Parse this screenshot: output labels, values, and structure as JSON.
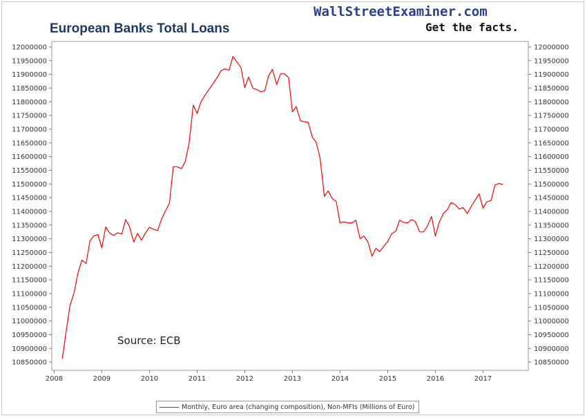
{
  "header": {
    "title": "European Banks Total Loans",
    "brand": "WallStreetExaminer.com",
    "tagline": "Get the facts."
  },
  "annotation": "Source: ECB",
  "legend": {
    "label": "Monthly, Euro area (changing composition), Non-MFIs (Millions of Euro)",
    "color": "#ff0000"
  },
  "chart_data": {
    "type": "line",
    "title": "European Banks Total Loans",
    "xlabel": "",
    "ylabel": "",
    "xlim": [
      2007.95,
      2017.95
    ],
    "ylim": [
      10820000,
      12020000
    ],
    "x_ticks": [
      2008,
      2009,
      2010,
      2011,
      2012,
      2013,
      2014,
      2015,
      2016,
      2017
    ],
    "y_ticks": [
      10850000,
      10900000,
      10950000,
      11000000,
      11050000,
      11100000,
      11150000,
      11200000,
      11250000,
      11300000,
      11350000,
      11400000,
      11450000,
      11500000,
      11550000,
      11600000,
      11650000,
      11700000,
      11750000,
      11800000,
      11850000,
      11900000,
      11950000,
      12000000
    ],
    "y_axis_both_sides": true,
    "grid": false,
    "legend_position": "bottom-center",
    "series": [
      {
        "name": "Monthly, Euro area (changing composition), Non-MFIs (Millions of Euro)",
        "color": "#ff0000",
        "x": [
          2008.17,
          2008.25,
          2008.33,
          2008.42,
          2008.5,
          2008.58,
          2008.67,
          2008.75,
          2008.83,
          2008.92,
          2009.0,
          2009.08,
          2009.17,
          2009.25,
          2009.33,
          2009.42,
          2009.5,
          2009.58,
          2009.67,
          2009.75,
          2009.83,
          2009.92,
          2010.0,
          2010.08,
          2010.17,
          2010.25,
          2010.33,
          2010.42,
          2010.5,
          2010.58,
          2010.67,
          2010.75,
          2010.83,
          2010.92,
          2011.0,
          2011.08,
          2011.17,
          2011.25,
          2011.33,
          2011.42,
          2011.5,
          2011.58,
          2011.67,
          2011.75,
          2011.83,
          2011.92,
          2012.0,
          2012.08,
          2012.17,
          2012.25,
          2012.33,
          2012.42,
          2012.5,
          2012.58,
          2012.67,
          2012.75,
          2012.83,
          2012.92,
          2013.0,
          2013.08,
          2013.17,
          2013.25,
          2013.33,
          2013.42,
          2013.5,
          2013.58,
          2013.67,
          2013.75,
          2013.83,
          2013.92,
          2014.0,
          2014.08,
          2014.17,
          2014.25,
          2014.33,
          2014.42,
          2014.5,
          2014.58,
          2014.67,
          2014.75,
          2014.83,
          2014.92,
          2015.0,
          2015.08,
          2015.17,
          2015.25,
          2015.33,
          2015.42,
          2015.5,
          2015.58,
          2015.67,
          2015.75,
          2015.83,
          2015.92,
          2016.0,
          2016.08,
          2016.17,
          2016.25,
          2016.33,
          2016.42,
          2016.5,
          2016.58,
          2016.67,
          2016.75,
          2016.83,
          2016.92,
          2017.0,
          2017.08,
          2017.17,
          2017.25,
          2017.33,
          2017.42
        ],
        "y": [
          10862000,
          10960000,
          11055000,
          11105000,
          11175000,
          11222000,
          11210000,
          11292000,
          11310000,
          11315000,
          11267000,
          11343000,
          11320000,
          11312000,
          11322000,
          11318000,
          11370000,
          11345000,
          11288000,
          11320000,
          11295000,
          11322000,
          11342000,
          11335000,
          11330000,
          11370000,
          11400000,
          11430000,
          11563000,
          11563000,
          11556000,
          11582000,
          11648000,
          11788000,
          11757000,
          11800000,
          11825000,
          11845000,
          11865000,
          11888000,
          11913000,
          11920000,
          11915000,
          11965000,
          11947000,
          11925000,
          11852000,
          11890000,
          11849000,
          11845000,
          11837000,
          11840000,
          11895000,
          11918000,
          11863000,
          11902000,
          11902000,
          11888000,
          11763000,
          11782000,
          11730000,
          11727000,
          11725000,
          11670000,
          11652000,
          11594000,
          11455000,
          11475000,
          11448000,
          11436000,
          11358000,
          11362000,
          11358000,
          11358000,
          11368000,
          11300000,
          11310000,
          11290000,
          11237000,
          11265000,
          11253000,
          11273000,
          11290000,
          11318000,
          11328000,
          11368000,
          11360000,
          11358000,
          11370000,
          11363000,
          11325000,
          11325000,
          11345000,
          11382000,
          11310000,
          11360000,
          11393000,
          11406000,
          11432000,
          11424000,
          11409000,
          11414000,
          11392000,
          11418000,
          11440000,
          11464000,
          11412000,
          11435000,
          11440000,
          11496000,
          11502000,
          11498000
        ]
      }
    ]
  }
}
